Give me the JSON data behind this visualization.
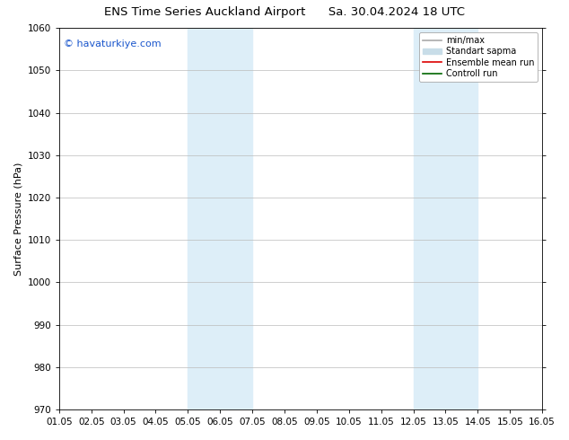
{
  "title_left": "ENS Time Series Auckland Airport",
  "title_right": "Sa. 30.04.2024 18 UTC",
  "ylabel": "Surface Pressure (hPa)",
  "ylim": [
    970,
    1060
  ],
  "yticks": [
    970,
    980,
    990,
    1000,
    1010,
    1020,
    1030,
    1040,
    1050,
    1060
  ],
  "xlim_min": 0,
  "xlim_max": 15,
  "xtick_labels": [
    "01.05",
    "02.05",
    "03.05",
    "04.05",
    "05.05",
    "06.05",
    "07.05",
    "08.05",
    "09.05",
    "10.05",
    "11.05",
    "12.05",
    "13.05",
    "14.05",
    "15.05",
    "16.05"
  ],
  "xtick_positions": [
    0,
    1,
    2,
    3,
    4,
    5,
    6,
    7,
    8,
    9,
    10,
    11,
    12,
    13,
    14,
    15
  ],
  "shade_bands": [
    {
      "x_start": 4.0,
      "x_end": 5.0,
      "color": "#ddeef8"
    },
    {
      "x_start": 5.0,
      "x_end": 6.0,
      "color": "#ddeef8"
    },
    {
      "x_start": 11.0,
      "x_end": 12.0,
      "color": "#ddeef8"
    },
    {
      "x_start": 12.0,
      "x_end": 13.0,
      "color": "#ddeef8"
    }
  ],
  "watermark_text": "© havaturkiye.com",
  "watermark_color": "#1a56cc",
  "legend_entries": [
    {
      "label": "min/max",
      "color": "#aaaaaa",
      "lw": 1.2,
      "type": "line"
    },
    {
      "label": "Standart sapma",
      "color": "#c8dde8",
      "lw": 7,
      "type": "bar"
    },
    {
      "label": "Ensemble mean run",
      "color": "#dd0000",
      "lw": 1.2,
      "type": "line"
    },
    {
      "label": "Controll run",
      "color": "#006600",
      "lw": 1.2,
      "type": "line"
    }
  ],
  "bg_color": "#ffffff",
  "grid_color": "#bbbbbb",
  "title_fontsize": 9.5,
  "tick_fontsize": 7.5,
  "ylabel_fontsize": 8,
  "watermark_fontsize": 8,
  "legend_fontsize": 7
}
